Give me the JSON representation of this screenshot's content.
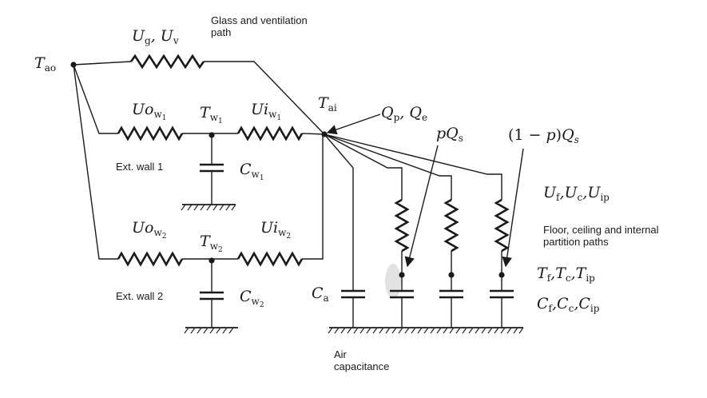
{
  "nodes": {
    "t_ao": {
      "sym": "T",
      "sub": "ao"
    },
    "t_ai": {
      "sym": "T",
      "sub": "ai"
    },
    "t_w1": {
      "sym": "T",
      "sub": "w",
      "subsub": "1"
    },
    "t_w2": {
      "sym": "T",
      "sub": "w",
      "subsub": "2"
    }
  },
  "resistors": {
    "ug_uv": {
      "a": "U",
      "a_sub": "g",
      "sep": ", ",
      "b": "U",
      "b_sub": "v"
    },
    "uo_w1": {
      "sym": "Uo",
      "sub": "w",
      "subsub": "1"
    },
    "ui_w1": {
      "sym": "Ui",
      "sub": "w",
      "subsub": "1"
    },
    "uo_w2": {
      "sym": "Uo",
      "sub": "w",
      "subsub": "2"
    },
    "ui_w2": {
      "sym": "Ui",
      "sub": "w",
      "subsub": "2"
    },
    "uf_uc_uip": {
      "a": "U",
      "a_sub": "f",
      "b": "U",
      "b_sub": "c",
      "c": "U",
      "c_sub": "ip",
      "sep": ","
    }
  },
  "capacitors": {
    "c_w1": {
      "sym": "C",
      "sub": "w",
      "subsub": "1"
    },
    "c_w2": {
      "sym": "C",
      "sub": "w",
      "subsub": "2"
    },
    "c_a": {
      "sym": "C",
      "sub": "a"
    },
    "cf_cc_cip": {
      "a": "C",
      "a_sub": "f",
      "b": "C",
      "b_sub": "c",
      "c": "C",
      "c_sub": "ip",
      "sep": ","
    }
  },
  "heat_inputs": {
    "qp_qe": {
      "a": "Q",
      "a_sub": "p",
      "sep": ", ",
      "b": "Q",
      "b_sub": "e"
    },
    "p_qs": {
      "pre": "p",
      "sym": "Q",
      "sub": "s"
    },
    "one_minus_p_qs": {
      "pre": "(1 − ",
      "p": "p",
      "post": ")",
      "sym": "Q",
      "sub": "s"
    }
  },
  "node_temps": {
    "a": "T",
    "a_sub": "f",
    "b": "T",
    "b_sub": "c",
    "c": "T",
    "c_sub": "ip",
    "sep": ","
  },
  "text_labels": {
    "glass_line1": "Glass and ventilation",
    "glass_line2": "path",
    "ext_wall_1": "Ext. wall 1",
    "ext_wall_2": "Ext. wall 2",
    "floor_line1": "Floor, ceiling and internal",
    "floor_line2": "partition paths",
    "air_line1": "Air",
    "air_line2": "capacitance"
  }
}
